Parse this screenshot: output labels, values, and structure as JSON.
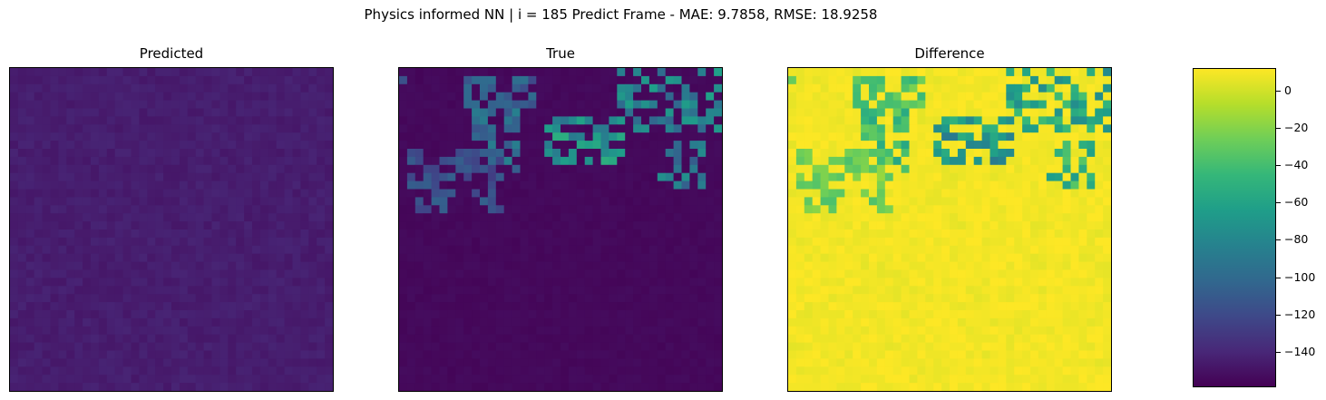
{
  "suptitle": "Physics informed NN | i = 185 Predict Frame - MAE: 9.7858, RMSE: 18.9258",
  "chart_data": [
    {
      "type": "heatmap",
      "title": "Predicted",
      "grid_size": [
        40,
        40
      ],
      "colormap": "viridis",
      "value_range": [
        0,
        160
      ],
      "background_level": 10,
      "note_blobs": [],
      "axes_ticks": "none"
    },
    {
      "type": "heatmap",
      "title": "True",
      "grid_size": [
        40,
        40
      ],
      "colormap": "viridis",
      "value_range": [
        0,
        160
      ],
      "background_level": 2,
      "high_regions": [
        {
          "row": 1,
          "col": 0,
          "value": 40
        },
        {
          "rows": [
            1,
            4
          ],
          "cols": [
            8,
            16
          ],
          "value": 60
        },
        {
          "rows": [
            0,
            7
          ],
          "cols": [
            27,
            39
          ],
          "value": 90
        },
        {
          "rows": [
            5,
            12
          ],
          "cols": [
            9,
            14
          ],
          "value": 70
        },
        {
          "rows": [
            6,
            11
          ],
          "cols": [
            18,
            27
          ],
          "value": 100
        },
        {
          "rows": [
            9,
            14
          ],
          "cols": [
            32,
            37
          ],
          "value": 80
        },
        {
          "rows": [
            10,
            17
          ],
          "cols": [
            1,
            12
          ],
          "value": 50
        }
      ],
      "axes_ticks": "none"
    },
    {
      "type": "heatmap",
      "title": "Difference",
      "grid_size": [
        40,
        40
      ],
      "colormap": "viridis",
      "value_range": [
        -158,
        12
      ],
      "background_level": 7,
      "colorbar": {
        "ticks": [
          0,
          -20,
          -40,
          -60,
          -80,
          -100,
          -120,
          -140
        ],
        "tick_labels": [
          "0",
          "−20",
          "−40",
          "−60",
          "−80",
          "−100",
          "−120",
          "−140"
        ]
      },
      "axes_ticks": "none"
    }
  ]
}
